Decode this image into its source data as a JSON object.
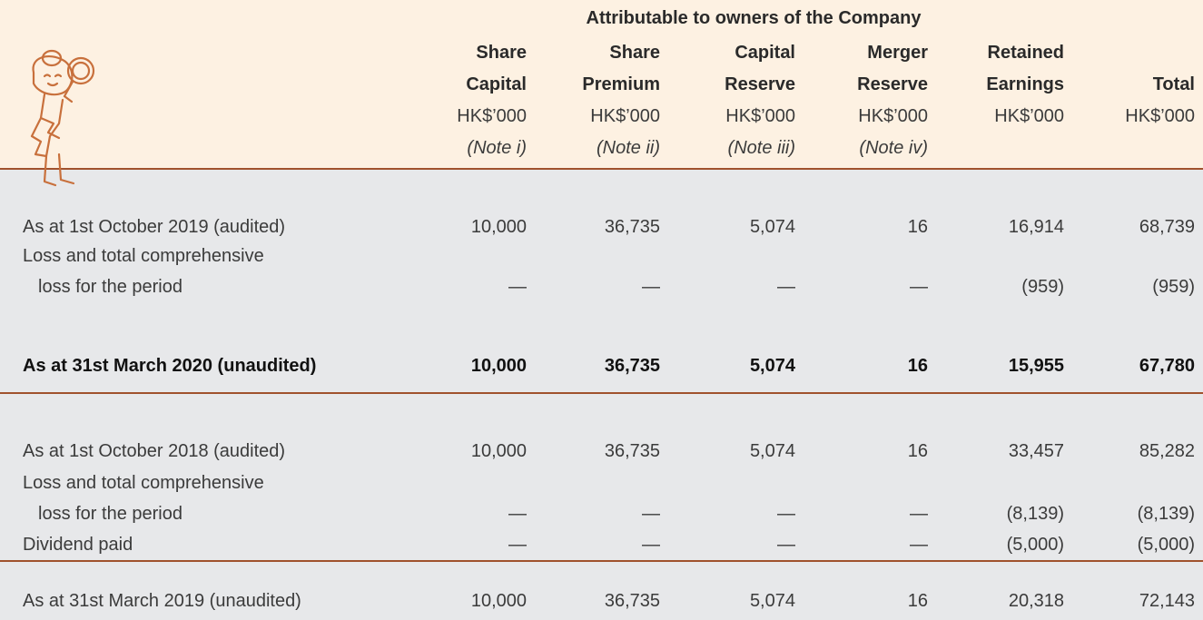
{
  "header": {
    "group_title": "Attributable to owners of the Company",
    "columns": [
      {
        "lines": [
          "Share",
          "Capital"
        ],
        "unit": "HK$’000",
        "note": "(Note i)"
      },
      {
        "lines": [
          "Share",
          "Premium"
        ],
        "unit": "HK$’000",
        "note": "(Note ii)"
      },
      {
        "lines": [
          "Capital",
          "Reserve"
        ],
        "unit": "HK$’000",
        "note": "(Note iii)"
      },
      {
        "lines": [
          "Merger",
          "Reserve"
        ],
        "unit": "HK$’000",
        "note": "(Note iv)"
      },
      {
        "lines": [
          "Retained",
          "Earnings"
        ],
        "unit": "HK$’000"
      },
      {
        "lines": [
          "Total"
        ],
        "unit": "HK$’000"
      }
    ]
  },
  "table": {
    "rows": [
      {
        "label": [
          "As at 1st October 2019 (audited)"
        ],
        "values": [
          "10,000",
          "36,735",
          "5,074",
          "16",
          "16,914",
          "68,739"
        ]
      },
      {
        "label": [
          "Loss and total comprehensive",
          "loss for the period"
        ],
        "values": [
          "—",
          "—",
          "—",
          "—",
          "(959)",
          "(959)"
        ]
      },
      {
        "label": [
          "As at 31st March 2020 (unaudited)"
        ],
        "values": [
          "10,000",
          "36,735",
          "5,074",
          "16",
          "15,955",
          "67,780"
        ]
      },
      {
        "label": [
          "As at 1st October 2018 (audited)"
        ],
        "values": [
          "10,000",
          "36,735",
          "5,074",
          "16",
          "33,457",
          "85,282"
        ]
      },
      {
        "label": [
          "Loss and total comprehensive",
          "loss for the period"
        ],
        "values": [
          "—",
          "—",
          "—",
          "—",
          "(8,139)",
          "(8,139)"
        ]
      },
      {
        "label": [
          "Dividend paid"
        ],
        "values": [
          "—",
          "—",
          "—",
          "—",
          "(5,000)",
          "(5,000)"
        ]
      },
      {
        "label": [
          "As at 31st March 2019 (unaudited)"
        ],
        "values": [
          "10,000",
          "36,735",
          "5,074",
          "16",
          "20,318",
          "72,143"
        ]
      }
    ]
  }
}
